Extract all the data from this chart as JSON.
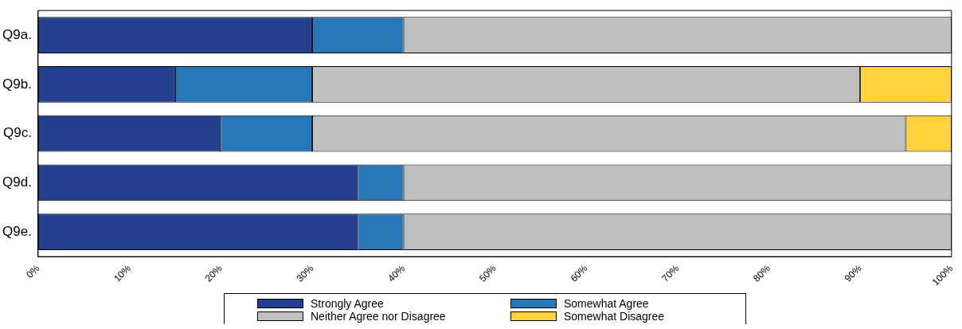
{
  "chart_data": {
    "type": "bar",
    "orientation": "horizontal",
    "stacked": true,
    "categories": [
      "Q9a.",
      "Q9b.",
      "Q9c.",
      "Q9d.",
      "Q9e."
    ],
    "series": [
      {
        "name": "Strongly Agree",
        "color": "#23408e",
        "values": [
          30,
          15,
          20,
          35,
          35
        ]
      },
      {
        "name": "Somewhat Agree",
        "color": "#2777b8",
        "values": [
          10,
          15,
          10,
          5,
          5
        ]
      },
      {
        "name": "Neither Agree nor Disagree",
        "color": "#bfbfbf",
        "values": [
          60,
          60,
          65,
          60,
          60
        ]
      },
      {
        "name": "Somewhat Disagree",
        "color": "#fdd23d",
        "values": [
          0,
          10,
          5,
          0,
          0
        ]
      }
    ],
    "xlim": [
      0,
      100
    ],
    "xticks": [
      {
        "value": 0,
        "label": "0%"
      },
      {
        "value": 10,
        "label": "10%"
      },
      {
        "value": 20,
        "label": "20%"
      },
      {
        "value": 30,
        "label": "30%"
      },
      {
        "value": 40,
        "label": "40%"
      },
      {
        "value": 50,
        "label": "50%"
      },
      {
        "value": 60,
        "label": "60%"
      },
      {
        "value": 70,
        "label": "70%"
      },
      {
        "value": 80,
        "label": "80%"
      },
      {
        "value": 90,
        "label": "90%"
      },
      {
        "value": 100,
        "label": "100%"
      }
    ],
    "grid": false,
    "legend": "bottom"
  }
}
